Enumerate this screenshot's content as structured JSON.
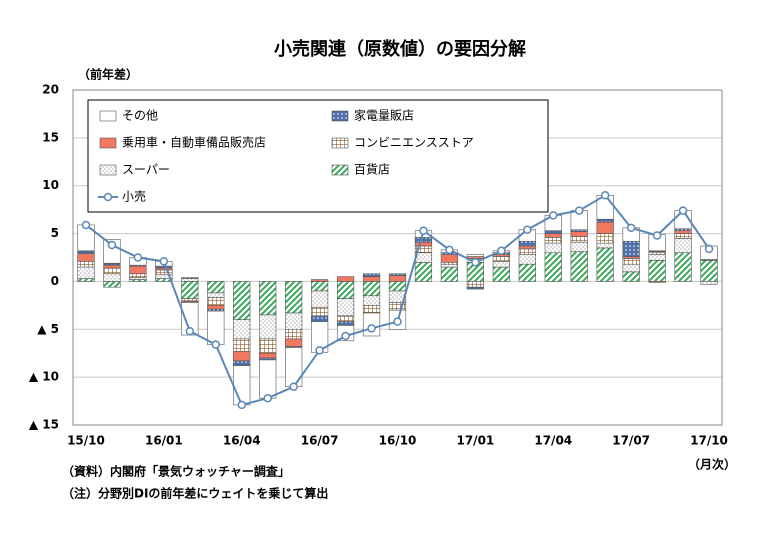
{
  "chart_data": {
    "type": "bar",
    "stacked": true,
    "title": "小売関連（原数値）の要因分解",
    "y_label": "（前年差）",
    "x_unit": "（月次）",
    "notes": [
      "（資料）内閣府「景気ウォッチャー調査」",
      "（注）分野別DIの前年差にウェイトを乗じて算出"
    ],
    "categories": [
      "15/10",
      null,
      null,
      "16/01",
      null,
      null,
      "16/04",
      null,
      null,
      "16/07",
      null,
      null,
      "16/10",
      null,
      null,
      "17/01",
      null,
      null,
      "17/04",
      null,
      null,
      "17/07",
      null,
      null,
      "17/10"
    ],
    "ylim": [
      -15,
      20
    ],
    "yticks": [
      {
        "value": -15,
        "label": "▲ 15"
      },
      {
        "value": -10,
        "label": "▲ 10"
      },
      {
        "value": -5,
        "label": "▲ 5"
      },
      0,
      5,
      10,
      15,
      20
    ],
    "grid": true,
    "series": [
      {
        "name": "その他",
        "color": "#ffffff",
        "values": [
          2.7,
          2.5,
          0.8,
          0.5,
          -3.4,
          -3.5,
          -4.1,
          -4.0,
          -4.1,
          -3.2,
          -1.6,
          -2.4,
          -2.0,
          0.7,
          0.3,
          0.2,
          0.2,
          1.2,
          1.6,
          2.0,
          2.5,
          1.4,
          1.7,
          1.9,
          1.4
        ]
      },
      {
        "name": "家電量販店",
        "color": "#4f6fa8",
        "values": [
          0.3,
          0.2,
          0.1,
          0.2,
          0.1,
          -0.2,
          -0.5,
          -0.2,
          -0.1,
          -0.6,
          -0.4,
          0.3,
          0.2,
          0.5,
          0.2,
          -0.2,
          0.2,
          0.5,
          0.3,
          0.2,
          0.3,
          1.6,
          0.1,
          0.2,
          0
        ]
      },
      {
        "name": "乗用車・自動車備品販売店",
        "color": "#f07860",
        "values": [
          0.8,
          0.3,
          0.8,
          0.2,
          -0.1,
          -0.4,
          -1.0,
          -0.5,
          -0.8,
          0.2,
          0.5,
          0.5,
          0.6,
          0.4,
          0.8,
          0.2,
          0.2,
          0.3,
          0.4,
          0.5,
          1.2,
          0.2,
          -0.1,
          0.3,
          0
        ]
      },
      {
        "name": "コンビニエンスストア",
        "color": "#8b5a2b",
        "values": [
          0.6,
          0.6,
          0.4,
          0.5,
          -0.3,
          -0.8,
          -1.3,
          -1.5,
          -1.0,
          -0.9,
          -0.6,
          -0.8,
          -0.8,
          0.7,
          0.2,
          -0.6,
          0.5,
          0.6,
          0.6,
          0.6,
          1.0,
          0.6,
          0.3,
          0.5,
          0.1
        ]
      },
      {
        "name": "スーパー",
        "color": "#808080",
        "values": [
          1.2,
          0.8,
          0.2,
          0.4,
          0.3,
          -0.5,
          -2.0,
          -2.5,
          -1.7,
          -1.7,
          -1.8,
          -1.0,
          -1.2,
          1.0,
          0.3,
          0.4,
          0.6,
          1.0,
          1.0,
          1.0,
          0.5,
          0.8,
          0.6,
          1.5,
          -0.3
        ]
      },
      {
        "name": "百貨店",
        "color": "#3aa85a",
        "values": [
          0.3,
          -0.6,
          0.2,
          0.3,
          -1.8,
          -1.2,
          -4.0,
          -3.5,
          -3.3,
          -1.0,
          -1.8,
          -1.5,
          -1.0,
          2.0,
          1.5,
          2.0,
          1.5,
          1.8,
          3.0,
          3.1,
          3.5,
          1.0,
          2.2,
          3.0,
          2.2
        ]
      },
      {
        "name": "小売",
        "type": "line",
        "color": "#5b87b8",
        "values": [
          5.9,
          3.8,
          2.5,
          2.1,
          -5.2,
          -6.6,
          -12.9,
          -12.2,
          -11.0,
          -7.2,
          -5.7,
          -4.9,
          -4.2,
          5.3,
          3.3,
          2.0,
          3.2,
          5.4,
          6.9,
          7.4,
          9.0,
          5.6,
          4.8,
          7.4,
          3.4
        ]
      }
    ]
  }
}
